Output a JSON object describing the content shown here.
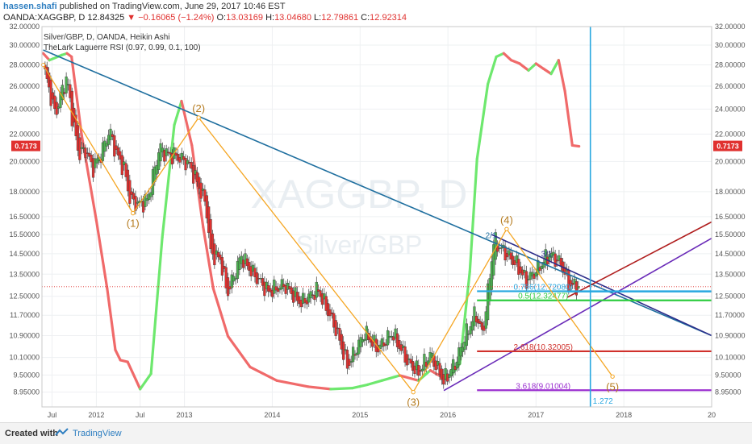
{
  "header": {
    "author": "hassen.shafi",
    "published": "published on TradingView.com, June 29, 2017 10:46 EST",
    "symbol_line": "OANDA:XAGGBP, D  12.84325",
    "change": "−0.16065 (−1.24%)",
    "o_label": "O:",
    "o_value": "13.03169",
    "h_label": "H:",
    "h_value": "13.04680",
    "l_label": "L:",
    "l_value": "12.79861",
    "c_label": "C:",
    "c_value": "12.92314"
  },
  "legend": {
    "line1": "Silver/GBP, D, OANDA, Heikin Ashi",
    "line2": "TheLark Laguerre RSI (0.97, 0.99, 0.1, 100)"
  },
  "watermark": {
    "symbol": "XAGGBP, D",
    "name": "Silver/GBP"
  },
  "footer": {
    "created": "Created with",
    "brand": "TradingView"
  },
  "colors": {
    "up": "#4caf50",
    "down": "#e0312f",
    "rsi_up": "#6ee86e",
    "rsi_down": "#f06a6a",
    "wave": "#f5a623",
    "trend": "#1f6f9f",
    "fib_786": "#29a8e0",
    "fib_05": "#2ecc40",
    "fib_2618": "#d0312d",
    "fib_3618": "#9b30d0",
    "purple": "#6a2bb8",
    "darkred": "#b01e1e",
    "navy": "#2c2c8a"
  },
  "chart_data": {
    "type": "line",
    "title": "Silver/GBP, D, OANDA, Heikin Ashi",
    "scale": "log",
    "ylim": [
      8.5,
      32
    ],
    "x_range": [
      "2011-05-20",
      "2019-01-01"
    ],
    "y_ticks": [
      "32.00000",
      "30.00000",
      "28.00000",
      "26.00000",
      "24.00000",
      "22.00000",
      "20.00000",
      "18.00000",
      "16.50000",
      "15.50000",
      "14.50000",
      "13.50000",
      "12.50000",
      "11.70000",
      "10.90000",
      "10.10000",
      "9.50000",
      "8.95000"
    ],
    "x_ticks": [
      {
        "label": "Jul",
        "date": "2011-07-01"
      },
      {
        "label": "2012",
        "date": "2012-01-01"
      },
      {
        "label": "Jul",
        "date": "2012-07-01"
      },
      {
        "label": "2013",
        "date": "2013-01-01"
      },
      {
        "label": "2014",
        "date": "2014-01-01"
      },
      {
        "label": "2015",
        "date": "2015-01-01"
      },
      {
        "label": "2016",
        "date": "2016-01-01"
      },
      {
        "label": "2017",
        "date": "2017-01-01"
      },
      {
        "label": "2018",
        "date": "2018-01-01"
      },
      {
        "label": "20",
        "date": "2019-01-01"
      }
    ],
    "price_path": [
      [
        "2011-05-25",
        28.0
      ],
      [
        "2011-06-15",
        26.0
      ],
      [
        "2011-07-15",
        23.5
      ],
      [
        "2011-08-10",
        25.5
      ],
      [
        "2011-09-01",
        26.8
      ],
      [
        "2011-09-25",
        23.0
      ],
      [
        "2011-10-20",
        20.5
      ],
      [
        "2011-11-20",
        20.8
      ],
      [
        "2011-12-15",
        19.5
      ],
      [
        "2012-01-20",
        20.5
      ],
      [
        "2012-02-25",
        22.3
      ],
      [
        "2012-03-25",
        20.5
      ],
      [
        "2012-04-25",
        19.5
      ],
      [
        "2012-05-20",
        17.5
      ],
      [
        "2012-06-25",
        17.2
      ],
      [
        "2012-08-01",
        17.5
      ],
      [
        "2012-09-20",
        21.0
      ],
      [
        "2012-10-20",
        20.5
      ],
      [
        "2012-11-25",
        20.4
      ],
      [
        "2013-01-20",
        19.8
      ],
      [
        "2013-02-20",
        18.7
      ],
      [
        "2013-04-01",
        17.2
      ],
      [
        "2013-04-20",
        14.5
      ],
      [
        "2013-06-01",
        14.2
      ],
      [
        "2013-06-28",
        12.6
      ],
      [
        "2013-08-25",
        14.4
      ],
      [
        "2013-10-01",
        13.7
      ],
      [
        "2013-12-15",
        12.7
      ],
      [
        "2014-02-20",
        13.0
      ],
      [
        "2014-05-01",
        12.2
      ],
      [
        "2014-07-10",
        12.8
      ],
      [
        "2014-09-20",
        11.2
      ],
      [
        "2014-11-10",
        9.8
      ],
      [
        "2015-01-20",
        11.0
      ],
      [
        "2015-03-15",
        10.4
      ],
      [
        "2015-05-15",
        11.0
      ],
      [
        "2015-07-20",
        9.9
      ],
      [
        "2015-09-01",
        9.6
      ],
      [
        "2015-10-20",
        10.2
      ],
      [
        "2015-12-15",
        9.3
      ],
      [
        "2016-02-01",
        9.9
      ],
      [
        "2016-03-15",
        10.9
      ],
      [
        "2016-04-25",
        11.8
      ],
      [
        "2016-05-25",
        10.9
      ],
      [
        "2016-07-10",
        15.2
      ],
      [
        "2016-08-20",
        14.6
      ],
      [
        "2016-10-10",
        14.0
      ],
      [
        "2016-11-20",
        13.2
      ],
      [
        "2017-01-05",
        13.7
      ],
      [
        "2017-02-25",
        14.5
      ],
      [
        "2017-04-15",
        14.0
      ],
      [
        "2017-05-20",
        13.0
      ],
      [
        "2017-06-29",
        12.92
      ]
    ],
    "rsi_path": [
      [
        "2011-05-25",
        0.99
      ],
      [
        "2011-06-20",
        0.97
      ],
      [
        "2011-08-10",
        0.985
      ],
      [
        "2011-09-01",
        0.99
      ],
      [
        "2011-09-20",
        0.98
      ],
      [
        "2011-11-01",
        0.75
      ],
      [
        "2012-01-01",
        0.5
      ],
      [
        "2012-02-15",
        0.3
      ],
      [
        "2012-03-20",
        0.12
      ],
      [
        "2012-04-10",
        0.09
      ],
      [
        "2012-05-10",
        0.085
      ],
      [
        "2012-06-15",
        0.03
      ],
      [
        "2012-07-01",
        0.005
      ],
      [
        "2012-08-15",
        0.05
      ],
      [
        "2012-10-01",
        0.45
      ],
      [
        "2012-11-20",
        0.78
      ],
      [
        "2012-12-20",
        0.85
      ],
      [
        "2013-02-01",
        0.72
      ],
      [
        "2013-03-20",
        0.48
      ],
      [
        "2013-05-01",
        0.3
      ],
      [
        "2013-07-01",
        0.16
      ],
      [
        "2013-10-01",
        0.07
      ],
      [
        "2014-01-20",
        0.03
      ],
      [
        "2014-06-01",
        0.012
      ],
      [
        "2014-09-01",
        0.005
      ],
      [
        "2014-12-01",
        0.008
      ],
      [
        "2015-02-01",
        0.018
      ],
      [
        "2015-04-01",
        0.03
      ],
      [
        "2015-06-15",
        0.045
      ],
      [
        "2015-09-01",
        0.03
      ],
      [
        "2015-10-20",
        0.06
      ],
      [
        "2015-12-20",
        0.035
      ],
      [
        "2016-01-20",
        0.05
      ],
      [
        "2016-02-20",
        0.08
      ],
      [
        "2016-04-01",
        0.35
      ],
      [
        "2016-05-01",
        0.68
      ],
      [
        "2016-06-15",
        0.9
      ],
      [
        "2016-07-20",
        0.98
      ],
      [
        "2016-08-20",
        0.99
      ],
      [
        "2016-09-20",
        0.97
      ],
      [
        "2016-10-25",
        0.96
      ],
      [
        "2016-12-01",
        0.94
      ],
      [
        "2017-01-01",
        0.96
      ],
      [
        "2017-02-01",
        0.945
      ],
      [
        "2017-03-05",
        0.93
      ],
      [
        "2017-04-05",
        0.97
      ],
      [
        "2017-05-01",
        0.88
      ],
      [
        "2017-06-01",
        0.72
      ],
      [
        "2017-06-29",
        0.7173
      ]
    ],
    "rsi_value_label": "0.7173",
    "wave_labels": [
      {
        "label": "(1)",
        "date": "2012-06-01",
        "price": 16.7,
        "pos": "below"
      },
      {
        "label": "(2)",
        "date": "2013-03-01",
        "price": 23.3,
        "pos": "above"
      },
      {
        "label": "(3)",
        "date": "2015-08-10",
        "price": 8.95,
        "pos": "below"
      },
      {
        "label": "(4)",
        "date": "2016-09-01",
        "price": 15.8,
        "pos": "above"
      },
      {
        "label": "(5)",
        "date": "2017-11-15",
        "price": 9.45,
        "pos": "below"
      }
    ],
    "wave_path": [
      [
        "2011-05-25",
        28.0
      ],
      [
        "2012-06-01",
        16.7
      ],
      [
        "2013-03-01",
        23.3
      ],
      [
        "2015-08-10",
        8.95
      ],
      [
        "2016-09-01",
        15.8
      ],
      [
        "2017-11-15",
        9.45
      ]
    ],
    "fib_levels": [
      {
        "label": "0.786(12.72080)",
        "value": 12.7208,
        "from": "2016-05-01",
        "color_key": "fib_786"
      },
      {
        "label": "0.5(12.32477)",
        "value": 12.32477,
        "from": "2016-05-01",
        "color_key": "fib_05"
      },
      {
        "label": "2.618(10.32005)",
        "value": 10.32005,
        "from": "2016-05-01",
        "color_key": "fib_2618"
      },
      {
        "label": "3.618(9.01004)",
        "value": 9.01004,
        "from": "2016-05-01",
        "color_key": "fib_3618"
      }
    ],
    "trend_lines": [
      {
        "from": [
          "2011-05-25",
          29.5
        ],
        "to": [
          "2019-01-01",
          10.9
        ],
        "color_key": "trend",
        "label": "2/1"
      },
      {
        "from": [
          "2016-07-01",
          15.5
        ],
        "to": [
          "2019-01-01",
          10.9
        ],
        "color_key": "navy",
        "label": "3/1"
      },
      {
        "from": [
          "2015-12-15",
          9.0
        ],
        "to": [
          "2019-01-01",
          15.3
        ],
        "color_key": "purple",
        "label": ""
      },
      {
        "from": [
          "2017-05-10",
          12.45
        ],
        "to": [
          "2019-01-01",
          16.2
        ],
        "color_key": "darkred",
        "label": ""
      },
      {
        "from": [
          "2017-05-10",
          12.7
        ],
        "to": [
          "2019-01-01",
          12.7
        ],
        "color_key": "fib_786",
        "label": ""
      }
    ],
    "current_price": 12.92314,
    "time_line": {
      "date": "2017-08-15",
      "label": "1.272"
    }
  }
}
